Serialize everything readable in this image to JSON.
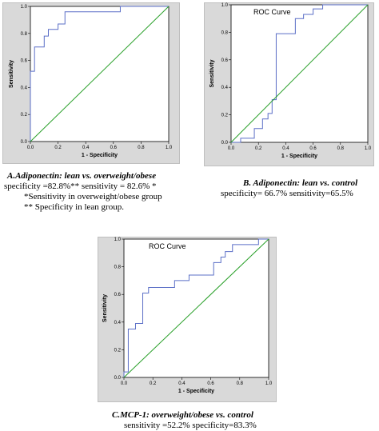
{
  "chart_data": [
    {
      "type": "line",
      "title": "",
      "xlabel": "1 - Specificity",
      "ylabel": "Sensitivity",
      "xlim": [
        0,
        1
      ],
      "ylim": [
        0,
        1
      ],
      "xticks": [
        "0.0",
        "0.2",
        "0.4",
        "0.6",
        "0.8",
        "1.0"
      ],
      "yticks": [
        "0.0",
        "0.2",
        "0.4",
        "0.6",
        "0.8",
        "1.0"
      ],
      "series": [
        {
          "color": "#5b6fc7",
          "x": [
            0,
            0,
            0.03,
            0.03,
            0.1,
            0.1,
            0.13,
            0.13,
            0.2,
            0.2,
            0.25,
            0.25,
            0.65,
            0.65,
            1.0
          ],
          "y": [
            0,
            0.52,
            0.52,
            0.7,
            0.7,
            0.78,
            0.78,
            0.83,
            0.83,
            0.87,
            0.87,
            0.96,
            0.96,
            1.0,
            1.0
          ]
        },
        {
          "color": "#2aa02a",
          "x": [
            0,
            1
          ],
          "y": [
            0,
            1
          ]
        }
      ],
      "caption": {
        "heading": "A.Adiponectin: lean vs. overweight/obese",
        "lines": [
          "specificity =82.8%** sensitivity = 82.6% *",
          "*Sensitivity in overweight/obese group",
          "** Specificity in lean group."
        ]
      }
    },
    {
      "type": "line",
      "title": "ROC Curve",
      "xlabel": "1 - Specificity",
      "ylabel": "Sensitivity",
      "xlim": [
        0,
        1
      ],
      "ylim": [
        0,
        1
      ],
      "xticks": [
        "0.0",
        "0.2",
        "0.4",
        "0.6",
        "0.8",
        "1.0"
      ],
      "yticks": [
        "0.0",
        "0.2",
        "0.4",
        "0.6",
        "0.8",
        "1.0"
      ],
      "series": [
        {
          "color": "#5b6fc7",
          "x": [
            0,
            0.07,
            0.07,
            0.17,
            0.17,
            0.23,
            0.23,
            0.27,
            0.27,
            0.3,
            0.3,
            0.33,
            0.33,
            0.47,
            0.47,
            0.53,
            0.53,
            0.6,
            0.6,
            0.67,
            0.67,
            1.0
          ],
          "y": [
            0,
            0,
            0.03,
            0.03,
            0.1,
            0.1,
            0.17,
            0.17,
            0.21,
            0.21,
            0.31,
            0.31,
            0.79,
            0.79,
            0.9,
            0.9,
            0.93,
            0.93,
            0.97,
            0.97,
            1.0,
            1.0
          ]
        },
        {
          "color": "#2aa02a",
          "x": [
            0,
            1
          ],
          "y": [
            0,
            1
          ]
        }
      ],
      "caption": {
        "heading": "B. Adiponectin: lean vs. control",
        "lines": [
          "specificity= 66.7%    sensitivity=65.5%"
        ]
      }
    },
    {
      "type": "line",
      "title": "ROC Curve",
      "xlabel": "1 - Specificity",
      "ylabel": "Sensitivity",
      "xlim": [
        0,
        1
      ],
      "ylim": [
        0,
        1
      ],
      "xticks": [
        "0.0",
        "0.2",
        "0.4",
        "0.6",
        "0.8",
        "1.0"
      ],
      "yticks": [
        "0.0",
        "0.2",
        "0.4",
        "0.6",
        "0.8",
        "1.0"
      ],
      "series": [
        {
          "color": "#5b6fc7",
          "x": [
            0,
            0,
            0.03,
            0.03,
            0.08,
            0.08,
            0.13,
            0.13,
            0.17,
            0.17,
            0.35,
            0.35,
            0.45,
            0.45,
            0.62,
            0.62,
            0.67,
            0.67,
            0.7,
            0.7,
            0.75,
            0.75,
            0.93,
            0.93,
            1.0
          ],
          "y": [
            0,
            0.04,
            0.04,
            0.35,
            0.35,
            0.39,
            0.39,
            0.61,
            0.61,
            0.65,
            0.65,
            0.7,
            0.7,
            0.74,
            0.74,
            0.83,
            0.83,
            0.87,
            0.87,
            0.91,
            0.91,
            0.96,
            0.96,
            1.0,
            1.0
          ]
        },
        {
          "color": "#2aa02a",
          "x": [
            0,
            1
          ],
          "y": [
            0,
            1
          ]
        }
      ],
      "caption": {
        "heading": "C.MCP-1: overweight/obese vs. control",
        "lines": [
          "sensitivity =52.2%     specificity=83.3%"
        ]
      }
    }
  ]
}
